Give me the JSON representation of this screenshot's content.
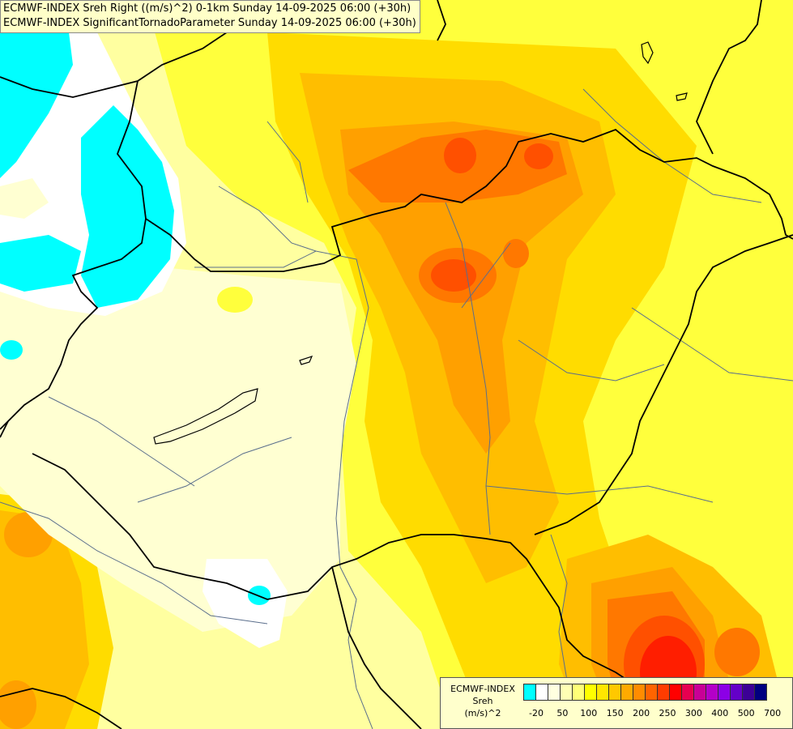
{
  "titles": {
    "line1": "ECMWF-INDEX Sreh Right ((m/s)^2) 0-1km Sunday 14-09-2025 06:00 (+30h)",
    "line2": "ECMWF-INDEX SignificantTornadoParameter Sunday 14-09-2025 06:00 (+30h)"
  },
  "legend": {
    "source": "ECMWF-INDEX",
    "variable": "Sreh",
    "unit": "(m/s)^2",
    "colors": [
      "#00ffff",
      "#ffffff",
      "#ffffe0",
      "#ffffb4",
      "#ffff78",
      "#ffff00",
      "#ffe600",
      "#ffc800",
      "#ffaa00",
      "#ff8c00",
      "#ff6400",
      "#ff3c00",
      "#ff0000",
      "#e60050",
      "#c80096",
      "#b400c8",
      "#8c00e6",
      "#6400c8",
      "#3c0096",
      "#000080"
    ],
    "tick_labels": [
      "-20",
      "50",
      "100",
      "150",
      "200",
      "250",
      "300",
      "400",
      "500",
      "700"
    ]
  },
  "map_colors": {
    "very_pale": "#ffffd2",
    "pale": "#ffffa0",
    "yellow": "#ffff3c",
    "gold": "#ffdc00",
    "orange_light": "#ffbe00",
    "orange": "#ffa000",
    "orange_dark": "#ff7800",
    "red_orange": "#ff5000",
    "red": "#ff1e00",
    "cyan": "#00ffff",
    "white": "#ffffff",
    "border": "#000000",
    "river": "#5a6e8c"
  }
}
